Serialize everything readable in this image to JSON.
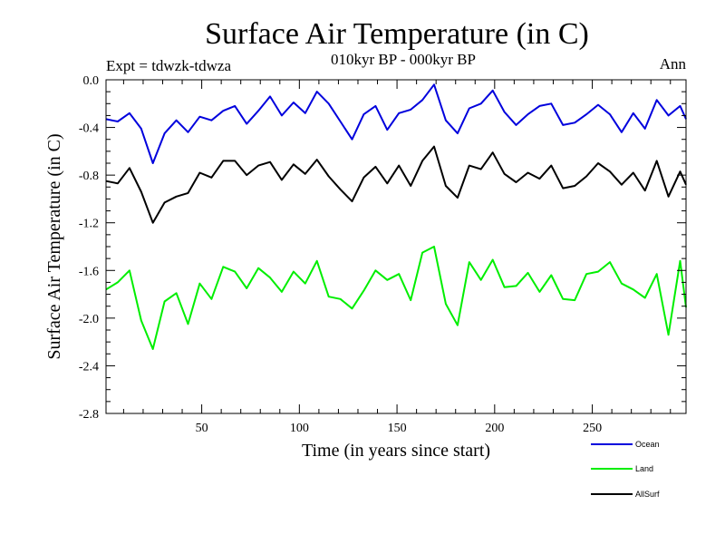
{
  "chart_data": {
    "type": "line",
    "title": "Surface Air Temperature (in C)",
    "subtitle": "010kyr BP - 000kyr BP",
    "experiment": "Expt = tdwzk-tdwza",
    "period": "Ann",
    "xlabel": "Time (in years since start)",
    "ylabel": "Surface Air Temperature (in C)",
    "xlim": [
      1,
      298
    ],
    "ylim": [
      -2.8,
      0.0
    ],
    "x_ticks": [
      50,
      100,
      150,
      200,
      250
    ],
    "y_ticks": [
      0.0,
      -0.4,
      -0.8,
      -1.2,
      -1.6,
      -2.0,
      -2.4,
      -2.8
    ],
    "y_tick_labels": [
      "0.0",
      "-0.4",
      "-0.8",
      "-1.2",
      "-1.6",
      "-2.0",
      "-2.4",
      "-2.8"
    ],
    "grid": false,
    "legend_position": "bottom-right, below plot",
    "x": [
      1,
      7,
      13,
      19,
      25,
      31,
      37,
      43,
      49,
      55,
      61,
      67,
      73,
      79,
      85,
      91,
      97,
      103,
      109,
      115,
      121,
      127,
      133,
      139,
      145,
      151,
      157,
      163,
      169,
      175,
      181,
      187,
      193,
      199,
      205,
      211,
      217,
      223,
      229,
      235,
      241,
      247,
      253,
      259,
      265,
      271,
      277,
      283,
      289,
      295,
      298
    ],
    "series": [
      {
        "name": "Ocean",
        "color": "#0000dd",
        "values": [
          -0.33,
          -0.35,
          -0.28,
          -0.41,
          -0.7,
          -0.45,
          -0.34,
          -0.44,
          -0.31,
          -0.34,
          -0.26,
          -0.22,
          -0.37,
          -0.26,
          -0.14,
          -0.3,
          -0.19,
          -0.28,
          -0.1,
          -0.2,
          -0.35,
          -0.5,
          -0.29,
          -0.22,
          -0.42,
          -0.28,
          -0.25,
          -0.17,
          -0.04,
          -0.34,
          -0.45,
          -0.24,
          -0.2,
          -0.09,
          -0.27,
          -0.38,
          -0.29,
          -0.22,
          -0.2,
          -0.38,
          -0.36,
          -0.29,
          -0.21,
          -0.29,
          -0.44,
          -0.28,
          -0.41,
          -0.17,
          -0.3,
          -0.22,
          -0.33
        ]
      },
      {
        "name": "Land",
        "color": "#00ee00",
        "values": [
          -1.76,
          -1.7,
          -1.6,
          -2.02,
          -2.26,
          -1.86,
          -1.79,
          -2.05,
          -1.71,
          -1.84,
          -1.57,
          -1.61,
          -1.75,
          -1.58,
          -1.66,
          -1.78,
          -1.61,
          -1.71,
          -1.52,
          -1.82,
          -1.84,
          -1.92,
          -1.77,
          -1.6,
          -1.68,
          -1.63,
          -1.85,
          -1.45,
          -1.4,
          -1.88,
          -2.06,
          -1.53,
          -1.68,
          -1.51,
          -1.74,
          -1.73,
          -1.62,
          -1.78,
          -1.64,
          -1.84,
          -1.85,
          -1.63,
          -1.61,
          -1.53,
          -1.71,
          -1.76,
          -1.83,
          -1.63,
          -2.14,
          -1.52,
          -1.91
        ]
      },
      {
        "name": "AllSurf",
        "color": "#000000",
        "values": [
          -0.85,
          -0.87,
          -0.74,
          -0.94,
          -1.2,
          -1.03,
          -0.98,
          -0.95,
          -0.78,
          -0.82,
          -0.68,
          -0.68,
          -0.8,
          -0.72,
          -0.69,
          -0.84,
          -0.71,
          -0.79,
          -0.67,
          -0.81,
          -0.92,
          -1.02,
          -0.82,
          -0.73,
          -0.87,
          -0.72,
          -0.89,
          -0.68,
          -0.56,
          -0.89,
          -0.99,
          -0.72,
          -0.75,
          -0.61,
          -0.79,
          -0.86,
          -0.78,
          -0.83,
          -0.72,
          -0.91,
          -0.89,
          -0.81,
          -0.7,
          -0.77,
          -0.88,
          -0.78,
          -0.93,
          -0.68,
          -0.98,
          -0.77,
          -0.88
        ]
      }
    ]
  }
}
